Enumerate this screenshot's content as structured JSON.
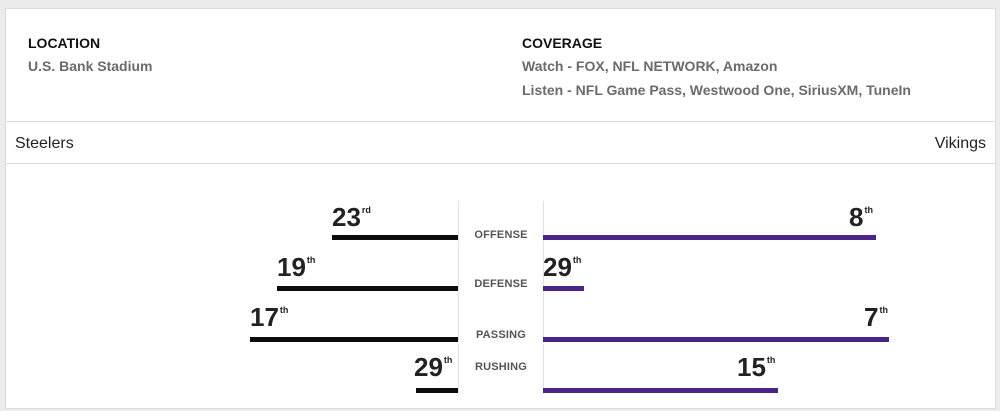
{
  "location": {
    "label": "LOCATION",
    "value": "U.S. Bank Stadium"
  },
  "coverage": {
    "label": "COVERAGE",
    "watch_key": "Watch",
    "watch_value": " - FOX, NFL NETWORK, Amazon",
    "listen_key": "Listen",
    "listen_value": " - NFL Game Pass, Westwood One, SiriusXM, TuneIn"
  },
  "teams": {
    "away": "Steelers",
    "home": "Vikings"
  },
  "colors": {
    "steelers_bar": "#0d0d0d",
    "vikings_bar": "#4a2486"
  },
  "stats": [
    {
      "category": "OFFENSE",
      "steelers_rank": "23",
      "steelers_suffix": "rd",
      "vikings_rank": "8",
      "vikings_suffix": "th"
    },
    {
      "category": "DEFENSE",
      "steelers_rank": "19",
      "steelers_suffix": "th",
      "vikings_rank": "29",
      "vikings_suffix": "th"
    },
    {
      "category": "PASSING",
      "steelers_rank": "17",
      "steelers_suffix": "th",
      "vikings_rank": "7",
      "vikings_suffix": "th"
    },
    {
      "category": "RUSHING",
      "steelers_rank": "29",
      "steelers_suffix": "th",
      "vikings_rank": "15",
      "vikings_suffix": "th"
    }
  ]
}
